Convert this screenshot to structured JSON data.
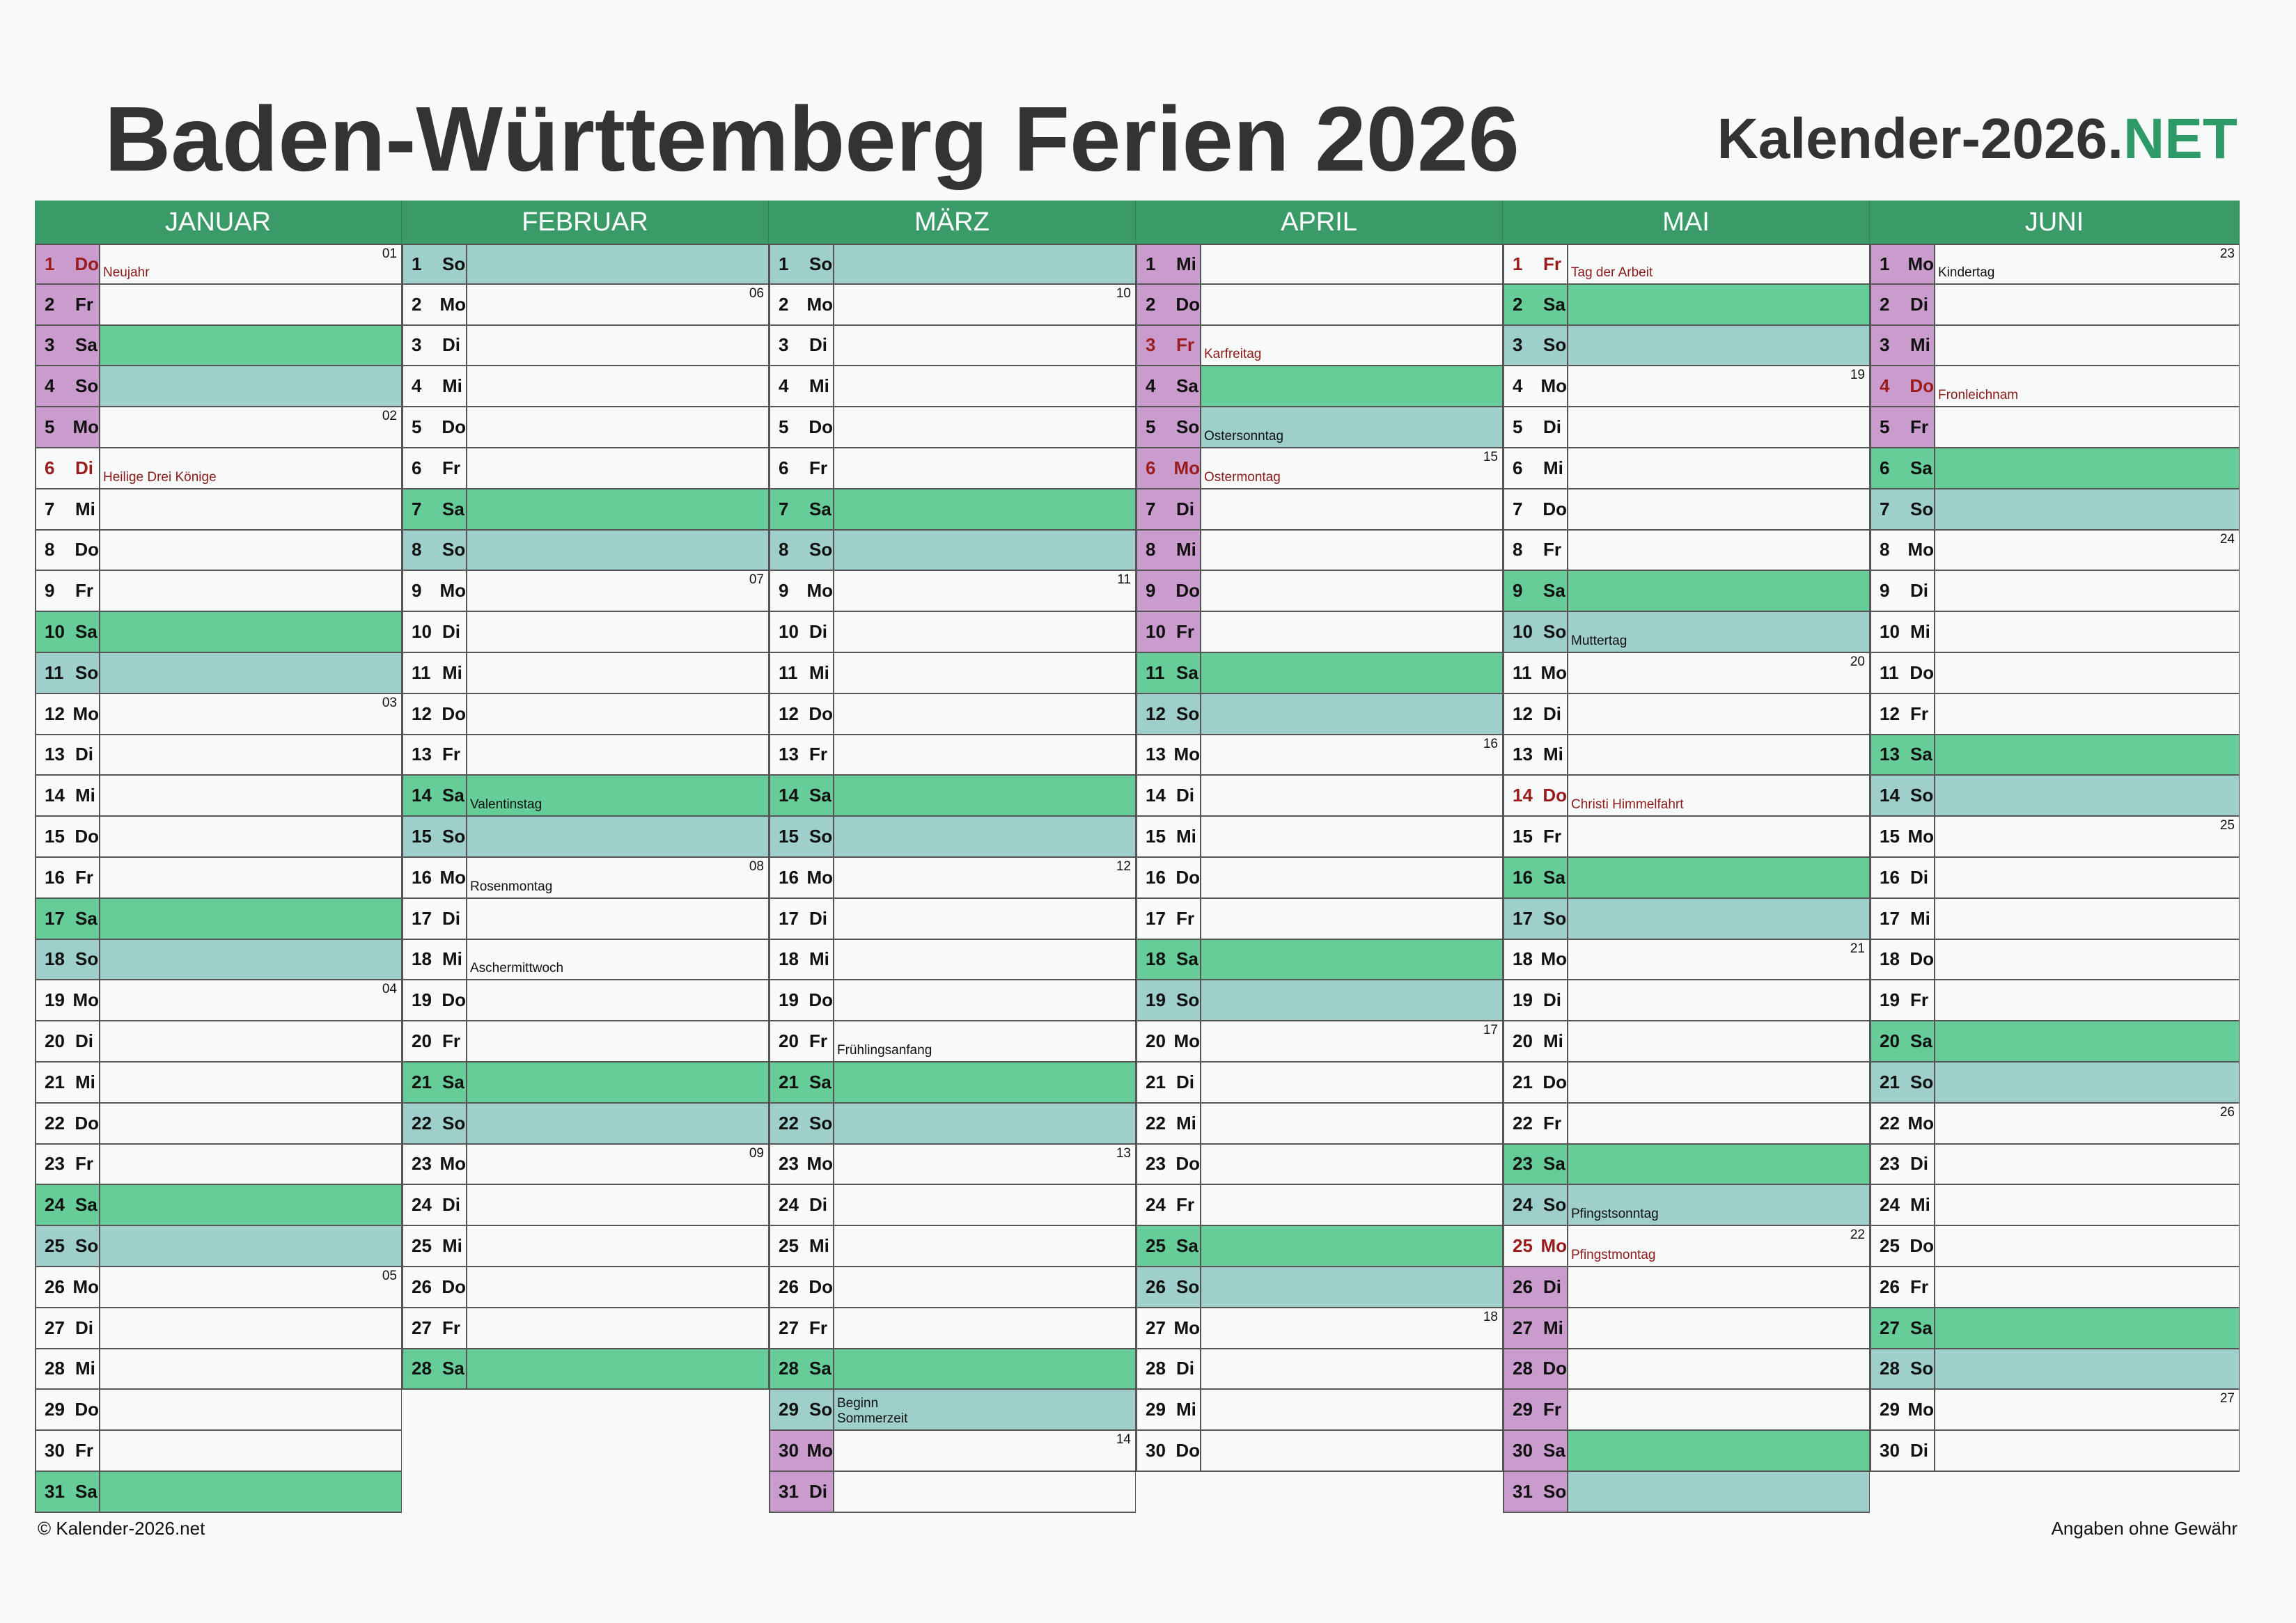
{
  "title": "Baden-Württemberg Ferien 2026",
  "brand": {
    "text": "Kalender-2026.",
    "accent": "NET"
  },
  "footer": {
    "left": "© Kalender-2026.net",
    "right": "Angaben ohne Gewähr"
  },
  "colors": {
    "header": "#3a9b69",
    "saturday": "#66cd98",
    "sunday": "#9ecfca",
    "vacation": "#c99ccd",
    "holiday_text": "#9a1c1c"
  },
  "months": [
    {
      "name": "JANUAR",
      "days": [
        {
          "d": "1",
          "wd": "Do",
          "vac": true,
          "hol": true,
          "kw": "01",
          "note": "Neujahr"
        },
        {
          "d": "2",
          "wd": "Fr",
          "vac": true
        },
        {
          "d": "3",
          "wd": "Sa",
          "vac": true
        },
        {
          "d": "4",
          "wd": "So",
          "vac": true
        },
        {
          "d": "5",
          "wd": "Mo",
          "vac": true,
          "kw": "02"
        },
        {
          "d": "6",
          "wd": "Di",
          "hol": true,
          "note": "Heilige Drei Könige"
        },
        {
          "d": "7",
          "wd": "Mi"
        },
        {
          "d": "8",
          "wd": "Do"
        },
        {
          "d": "9",
          "wd": "Fr"
        },
        {
          "d": "10",
          "wd": "Sa"
        },
        {
          "d": "11",
          "wd": "So"
        },
        {
          "d": "12",
          "wd": "Mo",
          "kw": "03"
        },
        {
          "d": "13",
          "wd": "Di"
        },
        {
          "d": "14",
          "wd": "Mi"
        },
        {
          "d": "15",
          "wd": "Do"
        },
        {
          "d": "16",
          "wd": "Fr"
        },
        {
          "d": "17",
          "wd": "Sa"
        },
        {
          "d": "18",
          "wd": "So"
        },
        {
          "d": "19",
          "wd": "Mo",
          "kw": "04"
        },
        {
          "d": "20",
          "wd": "Di"
        },
        {
          "d": "21",
          "wd": "Mi"
        },
        {
          "d": "22",
          "wd": "Do"
        },
        {
          "d": "23",
          "wd": "Fr"
        },
        {
          "d": "24",
          "wd": "Sa"
        },
        {
          "d": "25",
          "wd": "So"
        },
        {
          "d": "26",
          "wd": "Mo",
          "kw": "05"
        },
        {
          "d": "27",
          "wd": "Di"
        },
        {
          "d": "28",
          "wd": "Mi"
        },
        {
          "d": "29",
          "wd": "Do"
        },
        {
          "d": "30",
          "wd": "Fr"
        },
        {
          "d": "31",
          "wd": "Sa"
        }
      ]
    },
    {
      "name": "FEBRUAR",
      "days": [
        {
          "d": "1",
          "wd": "So"
        },
        {
          "d": "2",
          "wd": "Mo",
          "kw": "06"
        },
        {
          "d": "3",
          "wd": "Di"
        },
        {
          "d": "4",
          "wd": "Mi"
        },
        {
          "d": "5",
          "wd": "Do"
        },
        {
          "d": "6",
          "wd": "Fr"
        },
        {
          "d": "7",
          "wd": "Sa"
        },
        {
          "d": "8",
          "wd": "So"
        },
        {
          "d": "9",
          "wd": "Mo",
          "kw": "07"
        },
        {
          "d": "10",
          "wd": "Di"
        },
        {
          "d": "11",
          "wd": "Mi"
        },
        {
          "d": "12",
          "wd": "Do"
        },
        {
          "d": "13",
          "wd": "Fr"
        },
        {
          "d": "14",
          "wd": "Sa",
          "note": "Valentinstag"
        },
        {
          "d": "15",
          "wd": "So"
        },
        {
          "d": "16",
          "wd": "Mo",
          "kw": "08",
          "note": "Rosenmontag"
        },
        {
          "d": "17",
          "wd": "Di"
        },
        {
          "d": "18",
          "wd": "Mi",
          "note": "Aschermittwoch"
        },
        {
          "d": "19",
          "wd": "Do"
        },
        {
          "d": "20",
          "wd": "Fr"
        },
        {
          "d": "21",
          "wd": "Sa"
        },
        {
          "d": "22",
          "wd": "So"
        },
        {
          "d": "23",
          "wd": "Mo",
          "kw": "09"
        },
        {
          "d": "24",
          "wd": "Di"
        },
        {
          "d": "25",
          "wd": "Mi"
        },
        {
          "d": "26",
          "wd": "Do"
        },
        {
          "d": "27",
          "wd": "Fr"
        },
        {
          "d": "28",
          "wd": "Sa"
        }
      ]
    },
    {
      "name": "MÄRZ",
      "days": [
        {
          "d": "1",
          "wd": "So"
        },
        {
          "d": "2",
          "wd": "Mo",
          "kw": "10"
        },
        {
          "d": "3",
          "wd": "Di"
        },
        {
          "d": "4",
          "wd": "Mi"
        },
        {
          "d": "5",
          "wd": "Do"
        },
        {
          "d": "6",
          "wd": "Fr"
        },
        {
          "d": "7",
          "wd": "Sa"
        },
        {
          "d": "8",
          "wd": "So"
        },
        {
          "d": "9",
          "wd": "Mo",
          "kw": "11"
        },
        {
          "d": "10",
          "wd": "Di"
        },
        {
          "d": "11",
          "wd": "Mi"
        },
        {
          "d": "12",
          "wd": "Do"
        },
        {
          "d": "13",
          "wd": "Fr"
        },
        {
          "d": "14",
          "wd": "Sa"
        },
        {
          "d": "15",
          "wd": "So"
        },
        {
          "d": "16",
          "wd": "Mo",
          "kw": "12"
        },
        {
          "d": "17",
          "wd": "Di"
        },
        {
          "d": "18",
          "wd": "Mi"
        },
        {
          "d": "19",
          "wd": "Do"
        },
        {
          "d": "20",
          "wd": "Fr",
          "note": "Frühlingsanfang"
        },
        {
          "d": "21",
          "wd": "Sa"
        },
        {
          "d": "22",
          "wd": "So"
        },
        {
          "d": "23",
          "wd": "Mo",
          "kw": "13"
        },
        {
          "d": "24",
          "wd": "Di"
        },
        {
          "d": "25",
          "wd": "Mi"
        },
        {
          "d": "26",
          "wd": "Do"
        },
        {
          "d": "27",
          "wd": "Fr"
        },
        {
          "d": "28",
          "wd": "Sa"
        },
        {
          "d": "29",
          "wd": "So",
          "note": "Beginn Sommerzeit"
        },
        {
          "d": "30",
          "wd": "Mo",
          "vac": true,
          "kw": "14"
        },
        {
          "d": "31",
          "wd": "Di",
          "vac": true
        }
      ]
    },
    {
      "name": "APRIL",
      "days": [
        {
          "d": "1",
          "wd": "Mi",
          "vac": true
        },
        {
          "d": "2",
          "wd": "Do",
          "vac": true
        },
        {
          "d": "3",
          "wd": "Fr",
          "vac": true,
          "hol": true,
          "note": "Karfreitag"
        },
        {
          "d": "4",
          "wd": "Sa",
          "vac": true
        },
        {
          "d": "5",
          "wd": "So",
          "vac": true,
          "note": "Ostersonntag"
        },
        {
          "d": "6",
          "wd": "Mo",
          "vac": true,
          "hol": true,
          "kw": "15",
          "note": "Ostermontag"
        },
        {
          "d": "7",
          "wd": "Di",
          "vac": true
        },
        {
          "d": "8",
          "wd": "Mi",
          "vac": true
        },
        {
          "d": "9",
          "wd": "Do",
          "vac": true
        },
        {
          "d": "10",
          "wd": "Fr",
          "vac": true
        },
        {
          "d": "11",
          "wd": "Sa"
        },
        {
          "d": "12",
          "wd": "So"
        },
        {
          "d": "13",
          "wd": "Mo",
          "kw": "16"
        },
        {
          "d": "14",
          "wd": "Di"
        },
        {
          "d": "15",
          "wd": "Mi"
        },
        {
          "d": "16",
          "wd": "Do"
        },
        {
          "d": "17",
          "wd": "Fr"
        },
        {
          "d": "18",
          "wd": "Sa"
        },
        {
          "d": "19",
          "wd": "So"
        },
        {
          "d": "20",
          "wd": "Mo",
          "kw": "17"
        },
        {
          "d": "21",
          "wd": "Di"
        },
        {
          "d": "22",
          "wd": "Mi"
        },
        {
          "d": "23",
          "wd": "Do"
        },
        {
          "d": "24",
          "wd": "Fr"
        },
        {
          "d": "25",
          "wd": "Sa"
        },
        {
          "d": "26",
          "wd": "So"
        },
        {
          "d": "27",
          "wd": "Mo",
          "kw": "18"
        },
        {
          "d": "28",
          "wd": "Di"
        },
        {
          "d": "29",
          "wd": "Mi"
        },
        {
          "d": "30",
          "wd": "Do"
        }
      ]
    },
    {
      "name": "MAI",
      "days": [
        {
          "d": "1",
          "wd": "Fr",
          "hol": true,
          "note": "Tag der Arbeit"
        },
        {
          "d": "2",
          "wd": "Sa"
        },
        {
          "d": "3",
          "wd": "So"
        },
        {
          "d": "4",
          "wd": "Mo",
          "kw": "19"
        },
        {
          "d": "5",
          "wd": "Di"
        },
        {
          "d": "6",
          "wd": "Mi"
        },
        {
          "d": "7",
          "wd": "Do"
        },
        {
          "d": "8",
          "wd": "Fr"
        },
        {
          "d": "9",
          "wd": "Sa"
        },
        {
          "d": "10",
          "wd": "So",
          "note": "Muttertag"
        },
        {
          "d": "11",
          "wd": "Mo",
          "kw": "20"
        },
        {
          "d": "12",
          "wd": "Di"
        },
        {
          "d": "13",
          "wd": "Mi"
        },
        {
          "d": "14",
          "wd": "Do",
          "hol": true,
          "note": "Christi Himmelfahrt"
        },
        {
          "d": "15",
          "wd": "Fr"
        },
        {
          "d": "16",
          "wd": "Sa"
        },
        {
          "d": "17",
          "wd": "So"
        },
        {
          "d": "18",
          "wd": "Mo",
          "kw": "21"
        },
        {
          "d": "19",
          "wd": "Di"
        },
        {
          "d": "20",
          "wd": "Mi"
        },
        {
          "d": "21",
          "wd": "Do"
        },
        {
          "d": "22",
          "wd": "Fr"
        },
        {
          "d": "23",
          "wd": "Sa"
        },
        {
          "d": "24",
          "wd": "So",
          "note": "Pfingstsonntag"
        },
        {
          "d": "25",
          "wd": "Mo",
          "hol": true,
          "kw": "22",
          "note": "Pfingstmontag"
        },
        {
          "d": "26",
          "wd": "Di",
          "vac": true
        },
        {
          "d": "27",
          "wd": "Mi",
          "vac": true
        },
        {
          "d": "28",
          "wd": "Do",
          "vac": true
        },
        {
          "d": "29",
          "wd": "Fr",
          "vac": true
        },
        {
          "d": "30",
          "wd": "Sa",
          "vac": true
        },
        {
          "d": "31",
          "wd": "So",
          "vac": true
        }
      ]
    },
    {
      "name": "JUNI",
      "days": [
        {
          "d": "1",
          "wd": "Mo",
          "vac": true,
          "kw": "23",
          "note": "Kindertag"
        },
        {
          "d": "2",
          "wd": "Di",
          "vac": true
        },
        {
          "d": "3",
          "wd": "Mi",
          "vac": true
        },
        {
          "d": "4",
          "wd": "Do",
          "vac": true,
          "hol": true,
          "note": "Fronleichnam"
        },
        {
          "d": "5",
          "wd": "Fr",
          "vac": true
        },
        {
          "d": "6",
          "wd": "Sa"
        },
        {
          "d": "7",
          "wd": "So"
        },
        {
          "d": "8",
          "wd": "Mo",
          "kw": "24"
        },
        {
          "d": "9",
          "wd": "Di"
        },
        {
          "d": "10",
          "wd": "Mi"
        },
        {
          "d": "11",
          "wd": "Do"
        },
        {
          "d": "12",
          "wd": "Fr"
        },
        {
          "d": "13",
          "wd": "Sa"
        },
        {
          "d": "14",
          "wd": "So"
        },
        {
          "d": "15",
          "wd": "Mo",
          "kw": "25"
        },
        {
          "d": "16",
          "wd": "Di"
        },
        {
          "d": "17",
          "wd": "Mi"
        },
        {
          "d": "18",
          "wd": "Do"
        },
        {
          "d": "19",
          "wd": "Fr"
        },
        {
          "d": "20",
          "wd": "Sa"
        },
        {
          "d": "21",
          "wd": "So"
        },
        {
          "d": "22",
          "wd": "Mo",
          "kw": "26"
        },
        {
          "d": "23",
          "wd": "Di"
        },
        {
          "d": "24",
          "wd": "Mi"
        },
        {
          "d": "25",
          "wd": "Do"
        },
        {
          "d": "26",
          "wd": "Fr"
        },
        {
          "d": "27",
          "wd": "Sa"
        },
        {
          "d": "28",
          "wd": "So"
        },
        {
          "d": "29",
          "wd": "Mo",
          "kw": "27"
        },
        {
          "d": "30",
          "wd": "Di"
        }
      ]
    }
  ]
}
